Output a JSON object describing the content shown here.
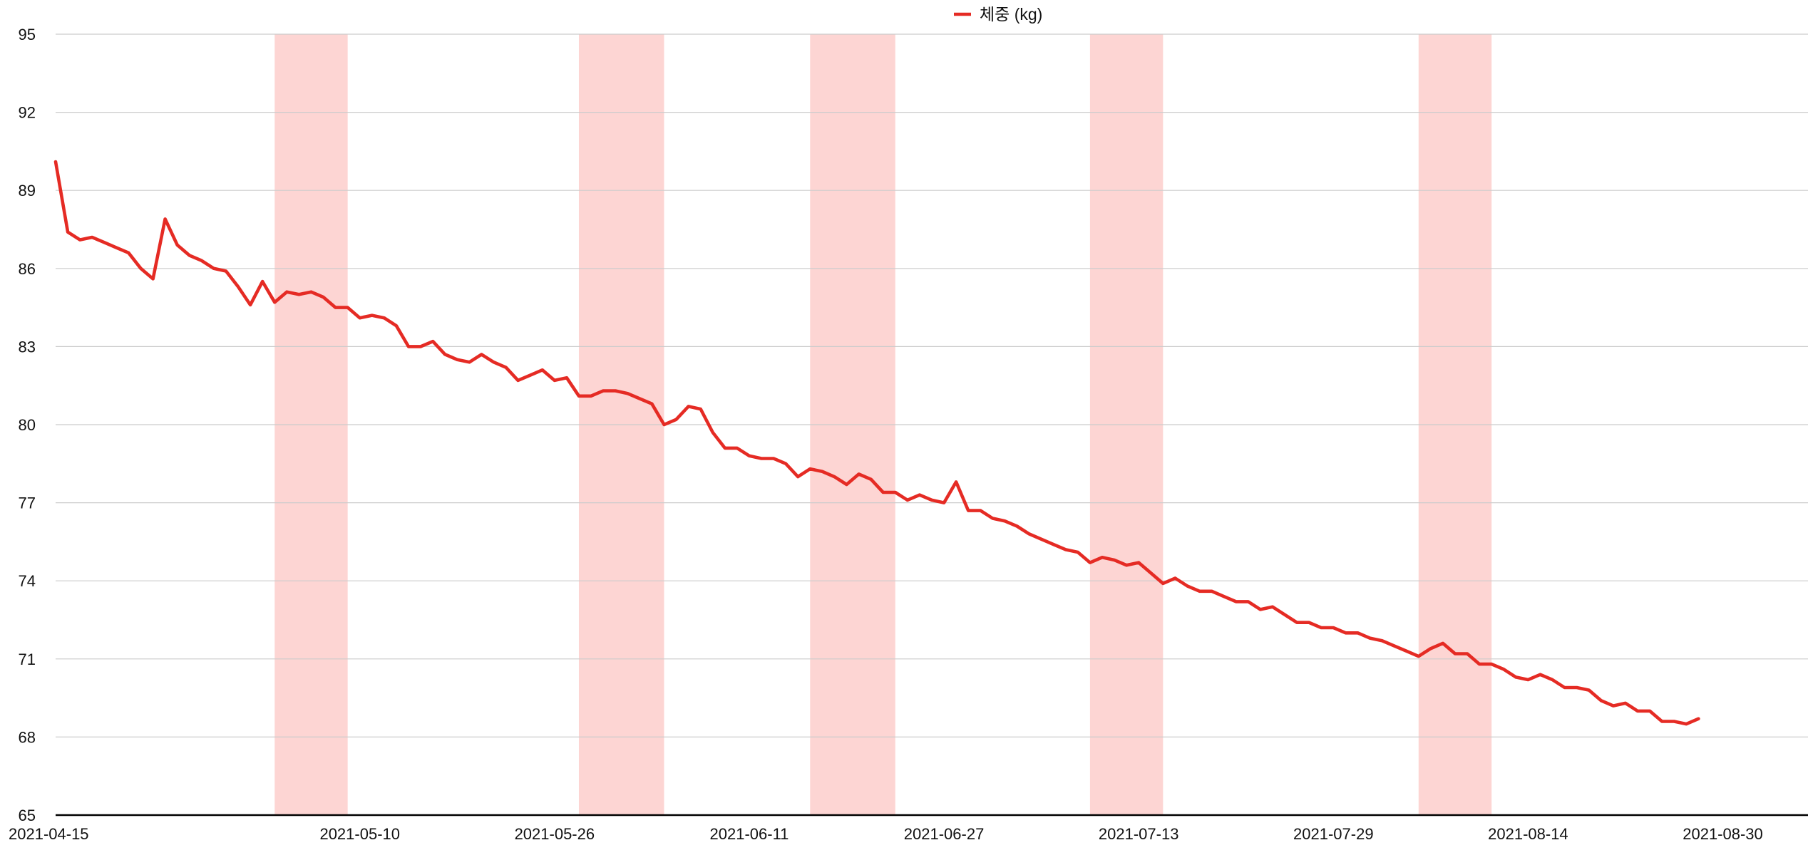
{
  "chart_data": {
    "type": "line",
    "title": "",
    "xlabel": "",
    "ylabel": "",
    "ylim": [
      65,
      95
    ],
    "xlim": [
      "2021-04-15",
      "2021-09-06"
    ],
    "grid": true,
    "legend_position": "top-center",
    "y_ticks": [
      65,
      68,
      71,
      74,
      77,
      80,
      83,
      86,
      89,
      92,
      95
    ],
    "x_tick_labels": [
      "2021-04-15",
      "2021-05-10",
      "2021-05-26",
      "2021-06-11",
      "2021-06-27",
      "2021-07-13",
      "2021-07-29",
      "2021-08-14",
      "2021-08-30"
    ],
    "highlight_ranges": [
      {
        "start": "2021-05-03",
        "end": "2021-05-08"
      },
      {
        "start": "2021-05-28",
        "end": "2021-06-03"
      },
      {
        "start": "2021-06-16",
        "end": "2021-06-22"
      },
      {
        "start": "2021-07-09",
        "end": "2021-07-14"
      },
      {
        "start": "2021-08-05",
        "end": "2021-08-10"
      }
    ],
    "highlight_color": "#fdd5d3",
    "series": [
      {
        "name": "체중 (kg)",
        "color": "#e52b24",
        "points": [
          [
            "2021-04-15",
            90.1
          ],
          [
            "2021-04-16",
            87.4
          ],
          [
            "2021-04-17",
            87.1
          ],
          [
            "2021-04-18",
            87.2
          ],
          [
            "2021-04-19",
            87.0
          ],
          [
            "2021-04-20",
            86.8
          ],
          [
            "2021-04-21",
            86.6
          ],
          [
            "2021-04-22",
            86.0
          ],
          [
            "2021-04-23",
            85.6
          ],
          [
            "2021-04-24",
            87.9
          ],
          [
            "2021-04-25",
            86.9
          ],
          [
            "2021-04-26",
            86.5
          ],
          [
            "2021-04-27",
            86.3
          ],
          [
            "2021-04-28",
            86.0
          ],
          [
            "2021-04-29",
            85.9
          ],
          [
            "2021-04-30",
            85.3
          ],
          [
            "2021-05-01",
            84.6
          ],
          [
            "2021-05-02",
            85.5
          ],
          [
            "2021-05-03",
            84.7
          ],
          [
            "2021-05-04",
            85.1
          ],
          [
            "2021-05-05",
            85.0
          ],
          [
            "2021-05-06",
            85.1
          ],
          [
            "2021-05-07",
            84.9
          ],
          [
            "2021-05-08",
            84.5
          ],
          [
            "2021-05-09",
            84.5
          ],
          [
            "2021-05-10",
            84.1
          ],
          [
            "2021-05-11",
            84.2
          ],
          [
            "2021-05-12",
            84.1
          ],
          [
            "2021-05-13",
            83.8
          ],
          [
            "2021-05-14",
            83.0
          ],
          [
            "2021-05-15",
            83.0
          ],
          [
            "2021-05-16",
            83.2
          ],
          [
            "2021-05-17",
            82.7
          ],
          [
            "2021-05-18",
            82.5
          ],
          [
            "2021-05-19",
            82.4
          ],
          [
            "2021-05-20",
            82.7
          ],
          [
            "2021-05-21",
            82.4
          ],
          [
            "2021-05-22",
            82.2
          ],
          [
            "2021-05-23",
            81.7
          ],
          [
            "2021-05-24",
            81.9
          ],
          [
            "2021-05-25",
            82.1
          ],
          [
            "2021-05-26",
            81.7
          ],
          [
            "2021-05-27",
            81.8
          ],
          [
            "2021-05-28",
            81.1
          ],
          [
            "2021-05-29",
            81.1
          ],
          [
            "2021-05-30",
            81.3
          ],
          [
            "2021-05-31",
            81.3
          ],
          [
            "2021-06-01",
            81.2
          ],
          [
            "2021-06-02",
            81.0
          ],
          [
            "2021-06-03",
            80.8
          ],
          [
            "2021-06-04",
            80.0
          ],
          [
            "2021-06-05",
            80.2
          ],
          [
            "2021-06-06",
            80.7
          ],
          [
            "2021-06-07",
            80.6
          ],
          [
            "2021-06-08",
            79.7
          ],
          [
            "2021-06-09",
            79.1
          ],
          [
            "2021-06-10",
            79.1
          ],
          [
            "2021-06-11",
            78.8
          ],
          [
            "2021-06-12",
            78.7
          ],
          [
            "2021-06-13",
            78.7
          ],
          [
            "2021-06-14",
            78.5
          ],
          [
            "2021-06-15",
            78.0
          ],
          [
            "2021-06-16",
            78.3
          ],
          [
            "2021-06-17",
            78.2
          ],
          [
            "2021-06-18",
            78.0
          ],
          [
            "2021-06-19",
            77.7
          ],
          [
            "2021-06-20",
            78.1
          ],
          [
            "2021-06-21",
            77.9
          ],
          [
            "2021-06-22",
            77.4
          ],
          [
            "2021-06-23",
            77.4
          ],
          [
            "2021-06-24",
            77.1
          ],
          [
            "2021-06-25",
            77.3
          ],
          [
            "2021-06-26",
            77.1
          ],
          [
            "2021-06-27",
            77.0
          ],
          [
            "2021-06-28",
            77.8
          ],
          [
            "2021-06-29",
            76.7
          ],
          [
            "2021-06-30",
            76.7
          ],
          [
            "2021-07-01",
            76.4
          ],
          [
            "2021-07-02",
            76.3
          ],
          [
            "2021-07-03",
            76.1
          ],
          [
            "2021-07-04",
            75.8
          ],
          [
            "2021-07-05",
            75.6
          ],
          [
            "2021-07-06",
            75.4
          ],
          [
            "2021-07-07",
            75.2
          ],
          [
            "2021-07-08",
            75.1
          ],
          [
            "2021-07-09",
            74.7
          ],
          [
            "2021-07-10",
            74.9
          ],
          [
            "2021-07-11",
            74.8
          ],
          [
            "2021-07-12",
            74.6
          ],
          [
            "2021-07-13",
            74.7
          ],
          [
            "2021-07-14",
            74.3
          ],
          [
            "2021-07-15",
            73.9
          ],
          [
            "2021-07-16",
            74.1
          ],
          [
            "2021-07-17",
            73.8
          ],
          [
            "2021-07-18",
            73.6
          ],
          [
            "2021-07-19",
            73.6
          ],
          [
            "2021-07-20",
            73.4
          ],
          [
            "2021-07-21",
            73.2
          ],
          [
            "2021-07-22",
            73.2
          ],
          [
            "2021-07-23",
            72.9
          ],
          [
            "2021-07-24",
            73.0
          ],
          [
            "2021-07-25",
            72.7
          ],
          [
            "2021-07-26",
            72.4
          ],
          [
            "2021-07-27",
            72.4
          ],
          [
            "2021-07-28",
            72.2
          ],
          [
            "2021-07-29",
            72.2
          ],
          [
            "2021-07-30",
            72.0
          ],
          [
            "2021-07-31",
            72.0
          ],
          [
            "2021-08-01",
            71.8
          ],
          [
            "2021-08-02",
            71.7
          ],
          [
            "2021-08-03",
            71.5
          ],
          [
            "2021-08-04",
            71.3
          ],
          [
            "2021-08-05",
            71.1
          ],
          [
            "2021-08-06",
            71.4
          ],
          [
            "2021-08-07",
            71.6
          ],
          [
            "2021-08-08",
            71.2
          ],
          [
            "2021-08-09",
            71.2
          ],
          [
            "2021-08-10",
            70.8
          ],
          [
            "2021-08-11",
            70.8
          ],
          [
            "2021-08-12",
            70.6
          ],
          [
            "2021-08-13",
            70.3
          ],
          [
            "2021-08-14",
            70.2
          ],
          [
            "2021-08-15",
            70.4
          ],
          [
            "2021-08-16",
            70.2
          ],
          [
            "2021-08-17",
            69.9
          ],
          [
            "2021-08-18",
            69.9
          ],
          [
            "2021-08-19",
            69.8
          ],
          [
            "2021-08-20",
            69.4
          ],
          [
            "2021-08-21",
            69.2
          ],
          [
            "2021-08-22",
            69.3
          ],
          [
            "2021-08-23",
            69.0
          ],
          [
            "2021-08-24",
            69.0
          ],
          [
            "2021-08-25",
            68.6
          ],
          [
            "2021-08-26",
            68.6
          ],
          [
            "2021-08-27",
            68.5
          ],
          [
            "2021-08-28",
            68.7
          ]
        ]
      }
    ]
  }
}
